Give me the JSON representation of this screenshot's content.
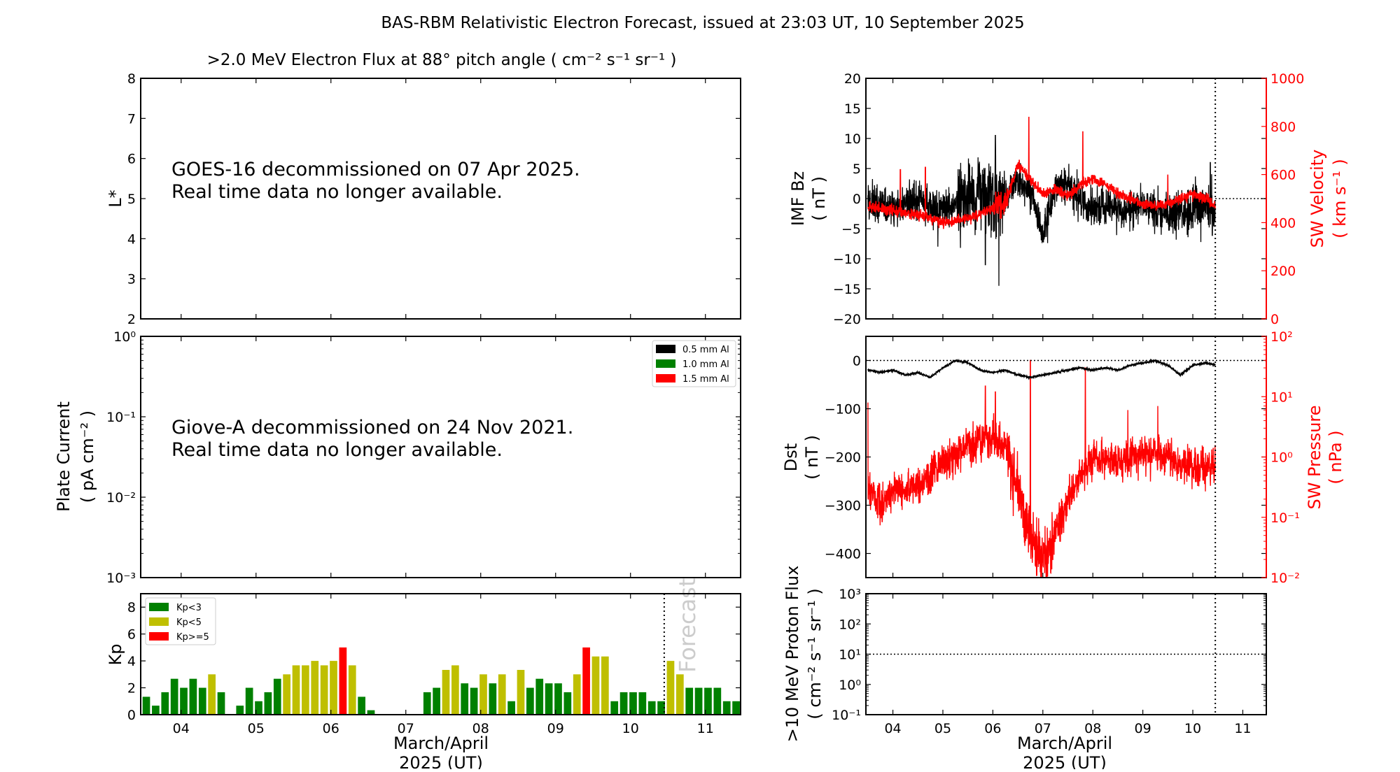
{
  "title": "BAS-RBM Relativistic Electron Forecast, issued at 23:03 UT, 10 September 2025",
  "x_ticks": [
    "04",
    "05",
    "06",
    "07",
    "08",
    "09",
    "10",
    "11"
  ],
  "x_tick_values": [
    4,
    5,
    6,
    7,
    8,
    9,
    10,
    11
  ],
  "x_label_1": "March/April",
  "x_label_2": "2025 (UT)",
  "chart_data": [
    {
      "name": "electron-flux",
      "type": "heatmap",
      "title": ">2.0 MeV Electron Flux at 88° pitch angle ( cm⁻² s⁻¹ sr⁻¹ )",
      "ylabel": "L*",
      "ylim": [
        2,
        8
      ],
      "yticks": [
        "2",
        "3",
        "4",
        "5",
        "6",
        "7",
        "8"
      ],
      "message_line1": "GOES-16 decommissioned on 07 Apr 2025.",
      "message_line2": "Real time data no longer available."
    },
    {
      "name": "plate-current",
      "type": "line",
      "ylabel_1": "Plate Current",
      "ylabel_2": "( pA cm⁻² )",
      "yscale": "log",
      "ylim": [
        0.001,
        1
      ],
      "yticks": [
        "10⁻³",
        "10⁻²",
        "10⁻¹",
        "10⁰"
      ],
      "legend": [
        {
          "label": "0.5 mm Al",
          "color": "#000000"
        },
        {
          "label": "1.0 mm Al",
          "color": "#008000"
        },
        {
          "label": "1.5 mm Al",
          "color": "#ff0000"
        }
      ],
      "legend_position": "top-right",
      "message_line1": "Giove-A decommissioned on 24 Nov 2021.",
      "message_line2": "Real time data no longer available."
    },
    {
      "name": "kp-index",
      "type": "bar",
      "ylabel": "Kp",
      "ylim": [
        0,
        9
      ],
      "yticks": [
        "0",
        "2",
        "4",
        "6",
        "8"
      ],
      "x_first": 3.41,
      "x_step": 0.125,
      "values": [
        0.67,
        1.33,
        0.67,
        1.67,
        2.67,
        2,
        2.67,
        2,
        3,
        1.67,
        0,
        0.67,
        2,
        1,
        1.67,
        2.67,
        3,
        3.67,
        3.67,
        4,
        3.67,
        4,
        5,
        3.67,
        1.33,
        0.33,
        0,
        0,
        0,
        0,
        0,
        1.67,
        2,
        3.33,
        3.67,
        2.33,
        2,
        3,
        2.33,
        3,
        1,
        3.33,
        2,
        2.67,
        2.33,
        2.33,
        1.67,
        3,
        5,
        4.33,
        4.33,
        1,
        1.67,
        1.67,
        1.67,
        1,
        1,
        4,
        3,
        2,
        2,
        2,
        2,
        1,
        1
      ],
      "legend": [
        {
          "label": "Kp<3",
          "color": "#008000"
        },
        {
          "label": "Kp<5",
          "color": "#bfbf00"
        },
        {
          "label": "Kp>=5",
          "color": "#ff0000"
        }
      ],
      "legend_position": "top-left",
      "forecast_start": 10.45,
      "forecast_label": "Forecast"
    },
    {
      "name": "imf-bz-sw-velocity",
      "type": "line",
      "ylabel_1": "IMF Bz",
      "ylabel_2": "( nT )",
      "ylim": [
        -20,
        20
      ],
      "yticks": [
        "−20",
        "−15",
        "−10",
        "−5",
        "0",
        "5",
        "10",
        "15",
        "20"
      ],
      "y2label_1": "SW Velocity",
      "y2label_2": "( km s⁻¹ )",
      "y2lim": [
        0,
        1000
      ],
      "y2ticks": [
        "0",
        "200",
        "400",
        "600",
        "800",
        "1000"
      ],
      "t_start": 3.5,
      "t_step": 0.25,
      "t_end": 10.45,
      "series": [
        {
          "name": "IMF Bz",
          "color": "#000000",
          "unit": "nT",
          "values": [
            -1,
            -1,
            -2,
            -1,
            0,
            -1,
            -2,
            -1,
            0,
            1,
            -1,
            0,
            3,
            1,
            -6,
            2,
            2,
            0,
            -2,
            -1,
            -2,
            -2,
            -1,
            -2,
            -3,
            -2,
            -2,
            -1,
            -3
          ],
          "spikes": [
            [
              6.12,
              -14.5
            ],
            [
              6.05,
              10.5
            ],
            [
              5.85,
              -11
            ],
            [
              4.9,
              -8
            ],
            [
              10.35,
              6
            ]
          ]
        },
        {
          "name": "SW Velocity",
          "color": "#ff0000",
          "unit": "km/s",
          "values": [
            470,
            460,
            450,
            440,
            430,
            420,
            400,
            410,
            420,
            440,
            460,
            480,
            640,
            580,
            520,
            540,
            510,
            560,
            580,
            560,
            520,
            500,
            480,
            470,
            480,
            500,
            520,
            500,
            460
          ],
          "spikes": [
            [
              6.72,
              840
            ],
            [
              7.8,
              780
            ],
            [
              4.65,
              630
            ],
            [
              4.15,
              620
            ],
            [
              9.5,
              600
            ]
          ]
        }
      ],
      "reference_line": 0,
      "now_marker": 10.45
    },
    {
      "name": "dst-sw-pressure",
      "type": "line",
      "ylabel_1": "Dst",
      "ylabel_2": "( nT )",
      "ylim": [
        -450,
        50
      ],
      "yticks": [
        "−400",
        "−300",
        "−200",
        "−100",
        "0"
      ],
      "ytick_values": [
        -400,
        -300,
        -200,
        -100,
        0
      ],
      "y2label_1": "SW Pressure",
      "y2label_2": "( nPa )",
      "y2scale": "log",
      "y2lim": [
        0.01,
        100
      ],
      "y2ticks": [
        "10⁻²",
        "10⁻¹",
        "10⁰",
        "10¹",
        "10²"
      ],
      "t_start": 3.5,
      "t_step": 0.25,
      "t_end": 10.45,
      "series": [
        {
          "name": "Dst",
          "color": "#000000",
          "unit": "nT",
          "values": [
            -20,
            -25,
            -20,
            -30,
            -25,
            -35,
            -15,
            0,
            -5,
            -20,
            -25,
            -20,
            -30,
            -35,
            -30,
            -25,
            -20,
            -15,
            -20,
            -15,
            -20,
            -10,
            -5,
            0,
            -10,
            -30,
            -10,
            -5,
            -10
          ],
          "spikes": []
        },
        {
          "name": "SW Pressure",
          "color": "#ff0000",
          "unit": "nPa",
          "values": [
            0.3,
            0.15,
            0.3,
            0.3,
            0.3,
            0.5,
            0.8,
            1.0,
            1.5,
            2.0,
            2.0,
            1.5,
            0.3,
            0.05,
            0.02,
            0.05,
            0.2,
            0.5,
            1.0,
            1.0,
            0.8,
            1.0,
            1.0,
            1.2,
            1.0,
            0.8,
            0.7,
            0.7,
            0.7
          ],
          "spikes": [
            [
              6.75,
              40
            ],
            [
              5.85,
              15
            ],
            [
              7.85,
              30
            ],
            [
              6.05,
              12
            ],
            [
              3.5,
              8
            ],
            [
              8.7,
              6
            ],
            [
              9.3,
              7
            ]
          ]
        }
      ],
      "reference_line": 0,
      "now_marker": 10.45
    },
    {
      "name": "proton-flux",
      "type": "line",
      "ylabel_1": ">10 MeV Proton Flux",
      "ylabel_2": "( cm⁻² s⁻¹ sr⁻¹ )",
      "yscale": "log",
      "ylim": [
        0.1,
        1000
      ],
      "yticks": [
        "10⁻¹",
        "10⁰",
        "10¹",
        "10²",
        "10³"
      ],
      "threshold": 10,
      "now_marker": 10.45
    }
  ]
}
